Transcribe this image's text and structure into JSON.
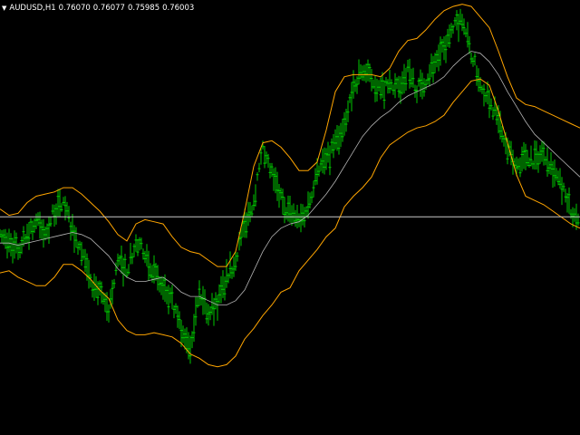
{
  "header": {
    "symbol": "AUDUSD,H1",
    "open": "0.76070",
    "high": "0.76077",
    "low": "0.75985",
    "close": "0.76003"
  },
  "colors": {
    "background": "#000000",
    "candle": "#00c800",
    "upper_band": "#ffa500",
    "lower_band": "#ffa500",
    "middle_band": "#b4b4b4",
    "horizontal_line": "#c8c8c8",
    "text": "#ffffff"
  },
  "chart_data": {
    "type": "line",
    "indicator": "bollinger-bands",
    "ylim": [
      0.7498,
      0.7702
    ],
    "horizontal_line": 0.76003,
    "x": [
      0,
      1,
      2,
      3,
      4,
      5,
      6,
      7,
      8,
      9,
      10,
      11,
      12,
      13,
      14,
      15,
      16,
      17,
      18,
      19,
      20,
      21,
      22,
      23,
      24,
      25,
      26,
      27,
      28,
      29,
      30,
      31,
      32,
      33,
      34,
      35,
      36,
      37,
      38,
      39,
      40,
      41,
      42,
      43,
      44,
      45,
      46,
      47,
      48,
      49,
      50,
      51,
      52,
      53,
      54,
      55,
      56,
      57,
      58,
      59,
      60,
      61,
      62,
      63,
      64
    ],
    "close": [
      0.759,
      0.7588,
      0.7585,
      0.7593,
      0.7598,
      0.7592,
      0.7603,
      0.7607,
      0.7594,
      0.7583,
      0.7569,
      0.7564,
      0.7557,
      0.7579,
      0.7576,
      0.7587,
      0.7584,
      0.7574,
      0.7566,
      0.756,
      0.7547,
      0.7541,
      0.7564,
      0.7556,
      0.756,
      0.7571,
      0.7581,
      0.7596,
      0.7608,
      0.7631,
      0.762,
      0.7609,
      0.7602,
      0.7598,
      0.7605,
      0.7623,
      0.7626,
      0.7635,
      0.7641,
      0.7662,
      0.7669,
      0.7665,
      0.7659,
      0.7662,
      0.766,
      0.7669,
      0.766,
      0.7665,
      0.7673,
      0.7679,
      0.7688,
      0.7694,
      0.7677,
      0.7663,
      0.7656,
      0.7645,
      0.7631,
      0.7624,
      0.7629,
      0.7627,
      0.7631,
      0.7623,
      0.7614,
      0.7603,
      0.76
    ],
    "middle": [
      0.7588,
      0.7588,
      0.7587,
      0.7588,
      0.7589,
      0.759,
      0.7591,
      0.7592,
      0.7593,
      0.7592,
      0.759,
      0.7586,
      0.7582,
      0.7576,
      0.7572,
      0.757,
      0.757,
      0.7571,
      0.7572,
      0.7569,
      0.7565,
      0.7563,
      0.7563,
      0.7561,
      0.7559,
      0.7559,
      0.7561,
      0.7566,
      0.7575,
      0.7584,
      0.7591,
      0.7595,
      0.7597,
      0.7598,
      0.7601,
      0.7606,
      0.7611,
      0.7617,
      0.7624,
      0.7631,
      0.7638,
      0.7643,
      0.7647,
      0.765,
      0.7654,
      0.7657,
      0.7659,
      0.7661,
      0.7663,
      0.7666,
      0.7671,
      0.7675,
      0.7678,
      0.7677,
      0.7673,
      0.7667,
      0.7659,
      0.7652,
      0.7645,
      0.7639,
      0.7635,
      0.7631,
      0.7627,
      0.7623,
      0.7619
    ],
    "upper": [
      0.7604,
      0.7601,
      0.7602,
      0.7607,
      0.761,
      0.7611,
      0.7612,
      0.7614,
      0.7614,
      0.7611,
      0.7607,
      0.7603,
      0.7598,
      0.7592,
      0.7589,
      0.7597,
      0.7599,
      0.7598,
      0.7597,
      0.7591,
      0.7586,
      0.7584,
      0.7583,
      0.758,
      0.7577,
      0.7577,
      0.7584,
      0.7603,
      0.7624,
      0.7635,
      0.7636,
      0.7633,
      0.7628,
      0.7622,
      0.7622,
      0.7626,
      0.7641,
      0.7659,
      0.7666,
      0.7667,
      0.7667,
      0.7667,
      0.7666,
      0.767,
      0.7678,
      0.7683,
      0.7684,
      0.7688,
      0.7693,
      0.7697,
      0.7699,
      0.77,
      0.7699,
      0.7694,
      0.7689,
      0.7678,
      0.7666,
      0.7656,
      0.7653,
      0.7652,
      0.765,
      0.7648,
      0.7646,
      0.7644,
      0.7642
    ],
    "lower": [
      0.7574,
      0.7575,
      0.7572,
      0.757,
      0.7568,
      0.7568,
      0.7572,
      0.7578,
      0.7578,
      0.7575,
      0.7571,
      0.7566,
      0.7562,
      0.7552,
      0.7547,
      0.7545,
      0.7545,
      0.7546,
      0.7545,
      0.7544,
      0.7541,
      0.7536,
      0.7534,
      0.7531,
      0.753,
      0.7531,
      0.7535,
      0.7543,
      0.7548,
      0.7554,
      0.7559,
      0.7565,
      0.7567,
      0.7575,
      0.758,
      0.7585,
      0.7591,
      0.7595,
      0.7605,
      0.761,
      0.7614,
      0.7619,
      0.7628,
      0.7634,
      0.7637,
      0.764,
      0.7642,
      0.7643,
      0.7645,
      0.7648,
      0.7654,
      0.7659,
      0.7664,
      0.7665,
      0.7662,
      0.765,
      0.7635,
      0.762,
      0.761,
      0.7608,
      0.7606,
      0.7603,
      0.76,
      0.7597,
      0.7595
    ]
  }
}
